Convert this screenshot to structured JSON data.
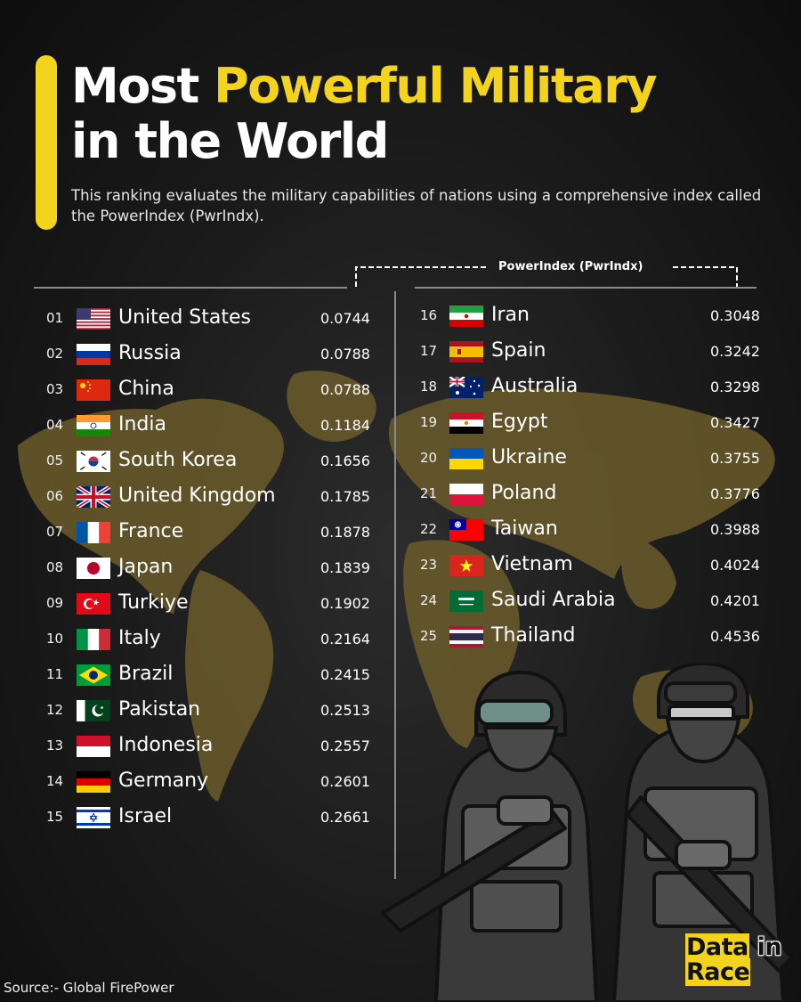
{
  "header": {
    "title_part1": "Most",
    "title_highlight": "Powerful Military",
    "title_part2": "in the World",
    "subtitle": "This ranking evaluates the military capabilities of nations using a comprehensive index called the PowerIndex (PwrIndx).",
    "accent_color": "#f4d31c"
  },
  "chart_data": {
    "type": "table",
    "value_header": "PowerIndex (PwrIndx)",
    "rows": [
      {
        "rank": "01",
        "country": "United States",
        "value": "0.0744",
        "flag": "flag-usa-icon"
      },
      {
        "rank": "02",
        "country": "Russia",
        "value": "0.0788",
        "flag": "flag-russia-icon"
      },
      {
        "rank": "03",
        "country": "China",
        "value": "0.0788",
        "flag": "flag-china-icon"
      },
      {
        "rank": "04",
        "country": "India",
        "value": "0.1184",
        "flag": "flag-india-icon"
      },
      {
        "rank": "05",
        "country": "South Korea",
        "value": "0.1656",
        "flag": "flag-south-korea-icon"
      },
      {
        "rank": "06",
        "country": "United Kingdom",
        "value": "0.1785",
        "flag": "flag-uk-icon"
      },
      {
        "rank": "07",
        "country": "France",
        "value": "0.1878",
        "flag": "flag-france-icon"
      },
      {
        "rank": "08",
        "country": "Japan",
        "value": "0.1839",
        "flag": "flag-japan-icon"
      },
      {
        "rank": "09",
        "country": "Turkiye",
        "value": "0.1902",
        "flag": "flag-turkiye-icon"
      },
      {
        "rank": "10",
        "country": "Italy",
        "value": "0.2164",
        "flag": "flag-italy-icon"
      },
      {
        "rank": "11",
        "country": "Brazil",
        "value": "0.2415",
        "flag": "flag-brazil-icon"
      },
      {
        "rank": "12",
        "country": "Pakistan",
        "value": "0.2513",
        "flag": "flag-pakistan-icon"
      },
      {
        "rank": "13",
        "country": "Indonesia",
        "value": "0.2557",
        "flag": "flag-indonesia-icon"
      },
      {
        "rank": "14",
        "country": "Germany",
        "value": "0.2601",
        "flag": "flag-germany-icon"
      },
      {
        "rank": "15",
        "country": "Israel",
        "value": "0.2661",
        "flag": "flag-israel-icon"
      },
      {
        "rank": "16",
        "country": "Iran",
        "value": "0.3048",
        "flag": "flag-iran-icon"
      },
      {
        "rank": "17",
        "country": "Spain",
        "value": "0.3242",
        "flag": "flag-spain-icon"
      },
      {
        "rank": "18",
        "country": "Australia",
        "value": "0.3298",
        "flag": "flag-australia-icon"
      },
      {
        "rank": "19",
        "country": "Egypt",
        "value": "0.3427",
        "flag": "flag-egypt-icon"
      },
      {
        "rank": "20",
        "country": "Ukraine",
        "value": "0.3755",
        "flag": "flag-ukraine-icon"
      },
      {
        "rank": "21",
        "country": "Poland",
        "value": "0.3776",
        "flag": "flag-poland-icon"
      },
      {
        "rank": "22",
        "country": "Taiwan",
        "value": "0.3988",
        "flag": "flag-taiwan-icon"
      },
      {
        "rank": "23",
        "country": "Vietnam",
        "value": "0.4024",
        "flag": "flag-vietnam-icon"
      },
      {
        "rank": "24",
        "country": "Saudi Arabia",
        "value": "0.4201",
        "flag": "flag-saudi-arabia-icon"
      },
      {
        "rank": "25",
        "country": "Thailand",
        "value": "0.4536",
        "flag": "flag-thailand-icon"
      }
    ]
  },
  "footer": {
    "source": "Source:-  Global FirePower",
    "logo_line1_a": "Data",
    "logo_line1_b": " in",
    "logo_line2": "Race"
  },
  "decor": {
    "background_map": "world-map-icon",
    "illustration": "soldiers-illustration-icon",
    "map_color": "#6b5c2c"
  }
}
